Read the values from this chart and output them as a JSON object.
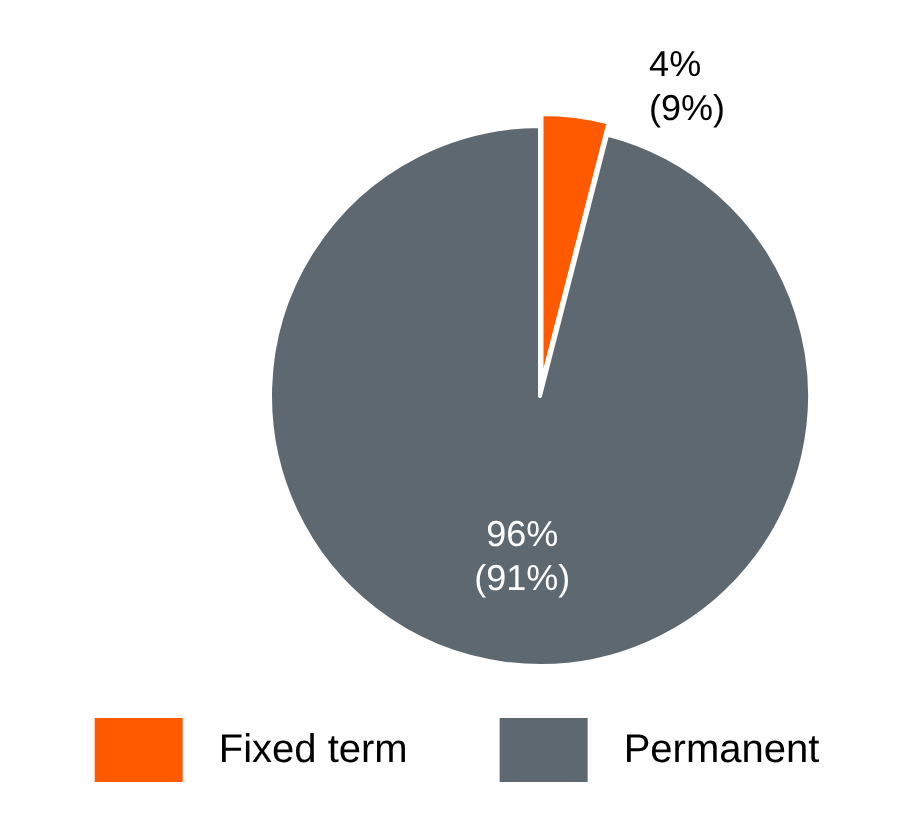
{
  "chart_data": {
    "type": "pie",
    "categories": [
      "Fixed term",
      "Permanent"
    ],
    "values": [
      4,
      96
    ],
    "colors": [
      "#ff5a00",
      "#5d6870"
    ],
    "value_labels": [
      "4%\n(9%)",
      "96%\n(91%)"
    ],
    "legend": "bottom"
  }
}
